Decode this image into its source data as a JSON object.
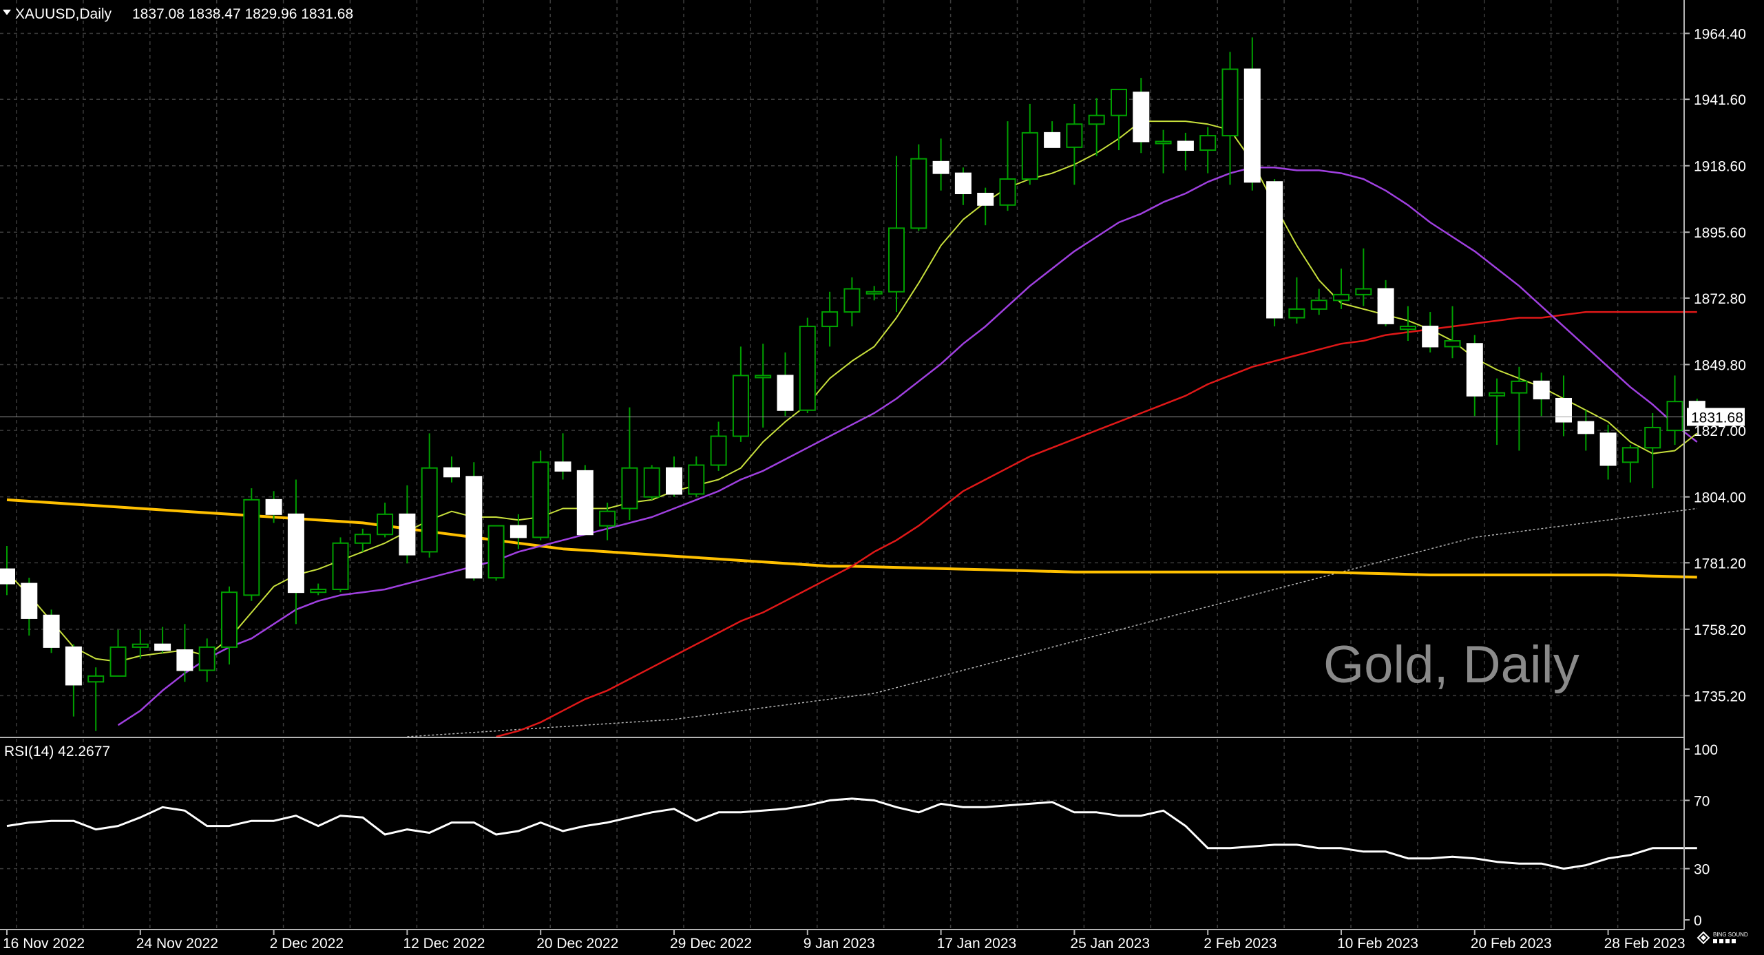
{
  "header": {
    "symbol": "XAUUSD,Daily",
    "ohlc": "1837.08 1838.47 1829.96 1831.68",
    "collapse_icon": "triangle-down-icon"
  },
  "watermark": "Gold, Daily",
  "logo_icon": "diamond-logo-icon",
  "logo_text": "BING SOUND",
  "colors": {
    "background": "#000000",
    "grid": "#3c3c3c",
    "candle_up": "#000000",
    "candle_up_border": "#00a000",
    "candle_down": "#ffffff",
    "wick": "#00a000",
    "ma_fast": "#c8e03c",
    "ma_mid": "#a040e0",
    "ma_slow": "#e01818",
    "ma_long": "#ffc000",
    "ma_dotted": "#b4b4b4",
    "rsi_line": "#ffffff",
    "axis_text": "#ffffff"
  },
  "chart_data": {
    "type": "candlestick",
    "title": "XAUUSD,Daily",
    "price_axis_ticks": [
      "1964.40",
      "1941.60",
      "1918.60",
      "1895.60",
      "1872.80",
      "1849.80",
      "1827.00",
      "1804.00",
      "1781.20",
      "1758.20",
      "1735.20"
    ],
    "ylim": [
      1721,
      1970
    ],
    "current_price": "1831.68",
    "date_labels": [
      {
        "label": "16 Nov 2022",
        "bar": 0
      },
      {
        "label": "24 Nov 2022",
        "bar": 6
      },
      {
        "label": "2 Dec 2022",
        "bar": 12
      },
      {
        "label": "12 Dec 2022",
        "bar": 18
      },
      {
        "label": "20 Dec 2022",
        "bar": 24
      },
      {
        "label": "29 Dec 2022",
        "bar": 30
      },
      {
        "label": "9 Jan 2023",
        "bar": 36
      },
      {
        "label": "17 Jan 2023",
        "bar": 42
      },
      {
        "label": "25 Jan 2023",
        "bar": 48
      },
      {
        "label": "2 Feb 2023",
        "bar": 54
      },
      {
        "label": "10 Feb 2023",
        "bar": 60
      },
      {
        "label": "20 Feb 2023",
        "bar": 66
      },
      {
        "label": "28 Feb 2023",
        "bar": 72
      }
    ],
    "candles": [
      [
        1779,
        1787,
        1770,
        1774
      ],
      [
        1774,
        1776,
        1756,
        1762
      ],
      [
        1763,
        1765,
        1750,
        1752
      ],
      [
        1752,
        1753,
        1728,
        1739
      ],
      [
        1740,
        1745,
        1723,
        1742
      ],
      [
        1742,
        1758,
        1742,
        1752
      ],
      [
        1752,
        1758,
        1748,
        1753
      ],
      [
        1753,
        1759,
        1750,
        1751
      ],
      [
        1751,
        1760,
        1740,
        1744
      ],
      [
        1744,
        1755,
        1740,
        1752
      ],
      [
        1752,
        1773,
        1746,
        1771
      ],
      [
        1770,
        1807,
        1768,
        1803
      ],
      [
        1803,
        1806,
        1795,
        1798
      ],
      [
        1798,
        1810,
        1760,
        1771
      ],
      [
        1771,
        1774,
        1770,
        1772
      ],
      [
        1772,
        1790,
        1771,
        1788
      ],
      [
        1788,
        1793,
        1785,
        1791
      ],
      [
        1791,
        1802,
        1790,
        1798
      ],
      [
        1798,
        1808,
        1781,
        1784
      ],
      [
        1785,
        1826,
        1783,
        1814
      ],
      [
        1814,
        1818,
        1809,
        1811
      ],
      [
        1811,
        1816,
        1775,
        1776
      ],
      [
        1776,
        1794,
        1775,
        1794
      ],
      [
        1794,
        1798,
        1786,
        1790
      ],
      [
        1790,
        1820,
        1789,
        1816
      ],
      [
        1816,
        1826,
        1810,
        1813
      ],
      [
        1813,
        1815,
        1791,
        1791
      ],
      [
        1794,
        1802,
        1789,
        1799
      ],
      [
        1800,
        1835,
        1796,
        1814
      ],
      [
        1804,
        1815,
        1803,
        1814
      ],
      [
        1814,
        1818,
        1804,
        1805
      ],
      [
        1805,
        1818,
        1804,
        1815
      ],
      [
        1815,
        1830,
        1813,
        1825
      ],
      [
        1825,
        1856,
        1823,
        1846
      ],
      [
        1846,
        1857,
        1828,
        1846
      ],
      [
        1846,
        1854,
        1832,
        1834
      ],
      [
        1834,
        1866,
        1833,
        1863
      ],
      [
        1863,
        1875,
        1856,
        1868
      ],
      [
        1868,
        1880,
        1863,
        1876
      ],
      [
        1875,
        1877,
        1872,
        1875
      ],
      [
        1875,
        1922,
        1868,
        1897
      ],
      [
        1897,
        1926,
        1896,
        1921
      ],
      [
        1920,
        1928,
        1910,
        1916
      ],
      [
        1916,
        1918,
        1905,
        1909
      ],
      [
        1909,
        1911,
        1898,
        1905
      ],
      [
        1905,
        1934,
        1903,
        1914
      ],
      [
        1914,
        1940,
        1912,
        1930
      ],
      [
        1930,
        1934,
        1925,
        1925
      ],
      [
        1925,
        1940,
        1912,
        1933
      ],
      [
        1933,
        1942,
        1922,
        1936
      ],
      [
        1936,
        1944,
        1924,
        1945
      ],
      [
        1944,
        1949,
        1923,
        1927
      ],
      [
        1927,
        1931,
        1916,
        1927
      ],
      [
        1927,
        1930,
        1917,
        1924
      ],
      [
        1924,
        1932,
        1916,
        1929
      ],
      [
        1929,
        1958,
        1912,
        1952
      ],
      [
        1952,
        1963,
        1910,
        1913
      ],
      [
        1913,
        1914,
        1863,
        1866
      ],
      [
        1866,
        1880,
        1864,
        1869
      ],
      [
        1869,
        1876,
        1867,
        1872
      ],
      [
        1872,
        1883,
        1869,
        1874
      ],
      [
        1874,
        1890,
        1870,
        1876
      ],
      [
        1876,
        1879,
        1863,
        1864
      ],
      [
        1862,
        1870,
        1858,
        1863
      ],
      [
        1863,
        1868,
        1854,
        1856
      ],
      [
        1856,
        1870,
        1852,
        1858
      ],
      [
        1857,
        1860,
        1832,
        1839
      ],
      [
        1839,
        1845,
        1822,
        1840
      ],
      [
        1840,
        1849,
        1820,
        1844
      ],
      [
        1844,
        1847,
        1832,
        1838
      ],
      [
        1838,
        1846,
        1825,
        1830
      ],
      [
        1830,
        1834,
        1820,
        1826
      ],
      [
        1826,
        1829,
        1810,
        1815
      ],
      [
        1816,
        1822,
        1809,
        1821
      ],
      [
        1821,
        1833,
        1807,
        1828
      ],
      [
        1827,
        1846,
        1822,
        1837
      ],
      [
        1837,
        1838,
        1830,
        1832
      ]
    ],
    "ma_fast": [
      1778,
      1770,
      1761,
      1752,
      1748,
      1747,
      1749,
      1750,
      1751,
      1749,
      1755,
      1764,
      1773,
      1777,
      1779,
      1782,
      1785,
      1788,
      1792,
      1796,
      1799,
      1797,
      1797,
      1796,
      1797,
      1800,
      1800,
      1800,
      1802,
      1803,
      1806,
      1808,
      1810,
      1814,
      1823,
      1830,
      1836,
      1845,
      1851,
      1856,
      1866,
      1878,
      1891,
      1900,
      1906,
      1911,
      1914,
      1916,
      1919,
      1923,
      1928,
      1934,
      1934,
      1934,
      1933,
      1931,
      1920,
      1905,
      1891,
      1879,
      1871,
      1869,
      1867,
      1865,
      1862,
      1858,
      1852,
      1848,
      1845,
      1842,
      1838,
      1834,
      1830,
      1823,
      1819,
      1820,
      1826
    ],
    "ma_mid": [
      1705,
      1708,
      1712,
      1716,
      1720,
      1725,
      1730,
      1737,
      1743,
      1748,
      1752,
      1755,
      1760,
      1765,
      1768,
      1770,
      1771,
      1772,
      1774,
      1776,
      1778,
      1780,
      1782,
      1785,
      1787,
      1789,
      1791,
      1793,
      1795,
      1797,
      1800,
      1803,
      1806,
      1810,
      1813,
      1817,
      1821,
      1825,
      1829,
      1833,
      1838,
      1844,
      1850,
      1857,
      1863,
      1870,
      1877,
      1883,
      1889,
      1894,
      1899,
      1902,
      1906,
      1909,
      1913,
      1916,
      1918,
      1918,
      1917,
      1917,
      1916,
      1914,
      1910,
      1905,
      1899,
      1894,
      1889,
      1883,
      1877,
      1870,
      1863,
      1856,
      1849,
      1842,
      1836,
      1829,
      1823
    ],
    "ma_slow": [
      null,
      null,
      null,
      null,
      null,
      null,
      null,
      null,
      null,
      null,
      null,
      null,
      null,
      null,
      null,
      null,
      null,
      null,
      null,
      null,
      null,
      null,
      1721,
      1723,
      1726,
      1730,
      1734,
      1737,
      1741,
      1745,
      1749,
      1753,
      1757,
      1761,
      1764,
      1768,
      1772,
      1776,
      1780,
      1785,
      1789,
      1794,
      1800,
      1806,
      1810,
      1814,
      1818,
      1821,
      1824,
      1827,
      1830,
      1833,
      1836,
      1839,
      1843,
      1846,
      1849,
      1851,
      1853,
      1855,
      1857,
      1858,
      1860,
      1861,
      1862,
      1863,
      1864,
      1865,
      1866,
      1866,
      1867,
      1868,
      1868,
      1868,
      1868,
      1868,
      1868
    ],
    "ma_long": [
      1803,
      1802.5,
      1802,
      1801.5,
      1801,
      1800.5,
      1800,
      1799.5,
      1799,
      1798.5,
      1798,
      1797.5,
      1797,
      1796.5,
      1796,
      1795.5,
      1795,
      1794,
      1793,
      1792,
      1791,
      1790,
      1789,
      1788,
      1787,
      1786,
      1785.5,
      1785,
      1784.5,
      1784,
      1783.5,
      1783,
      1782.5,
      1782,
      1781.5,
      1781,
      1780.5,
      1780,
      1780,
      1779.8,
      1779.6,
      1779.4,
      1779.2,
      1779,
      1778.8,
      1778.6,
      1778.4,
      1778.2,
      1778,
      1778,
      1778,
      1778,
      1778,
      1778,
      1778,
      1778,
      1778,
      1778,
      1778,
      1778,
      1777.8,
      1777.6,
      1777.4,
      1777.2,
      1777,
      1777,
      1777,
      1777,
      1777,
      1777,
      1777,
      1777,
      1777,
      1776.8,
      1776.6,
      1776.4,
      1776.2
    ],
    "ma_dotted": [
      null,
      null,
      null,
      null,
      null,
      null,
      null,
      null,
      null,
      null,
      null,
      null,
      null,
      null,
      null,
      null,
      null,
      null,
      1721,
      1721.5,
      1722,
      1722.5,
      1723,
      1723.5,
      1724,
      1724.5,
      1725,
      1725.5,
      1726,
      1726.5,
      1727,
      1728,
      1729,
      1730,
      1731,
      1732,
      1733,
      1734,
      1735,
      1736,
      1738,
      1740,
      1742,
      1744,
      1746,
      1748,
      1750,
      1752,
      1754,
      1756,
      1758,
      1760,
      1762,
      1764,
      1766,
      1768,
      1770,
      1772,
      1774,
      1776,
      1778,
      1780,
      1782,
      1784,
      1786,
      1788,
      1790,
      1791,
      1792,
      1793,
      1794,
      1795,
      1796,
      1797,
      1798,
      1799,
      1800
    ],
    "rsi": {
      "label": "RSI(14) 42.2677",
      "ticks": [
        "100",
        "70",
        "30",
        "0"
      ],
      "ylim": [
        0,
        100
      ],
      "levels": [
        70,
        30
      ],
      "values": [
        69,
        64,
        60,
        55,
        55,
        57,
        58,
        58,
        53,
        55,
        60,
        66,
        64,
        55,
        55,
        58,
        58,
        61,
        55,
        61,
        60,
        50,
        53,
        51,
        57,
        57,
        50,
        52,
        57,
        52,
        55,
        57,
        60,
        63,
        65,
        58,
        63,
        63,
        64,
        65,
        67,
        70,
        71,
        70,
        66,
        63,
        68,
        66,
        66,
        67,
        68,
        69,
        63,
        63,
        61,
        61,
        64,
        55,
        42,
        42,
        43,
        44,
        44,
        42,
        42,
        40,
        40,
        36,
        36,
        37,
        36,
        34,
        33,
        33,
        30,
        32,
        36,
        38,
        42,
        42,
        42
      ],
      "value_offset": -4
    }
  }
}
